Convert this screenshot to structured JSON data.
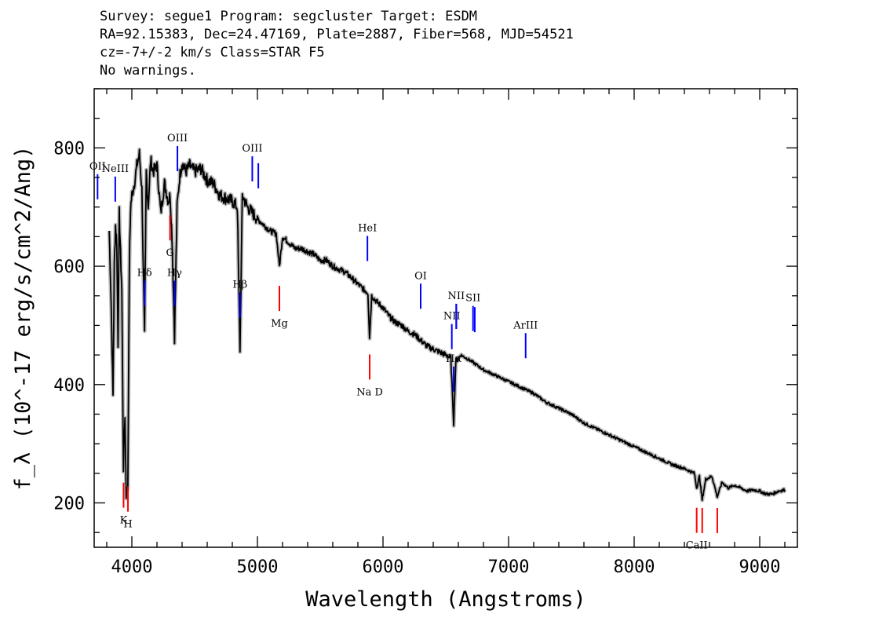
{
  "header": {
    "line1": "Survey: segue1 Program: segcluster Target: ESDM",
    "line2": "RA=92.15383, Dec=24.47169, Plate=2887, Fiber=568, MJD=54521",
    "line3": "cz=-7+/-2 km/s Class=STAR F5",
    "line4": "No warnings."
  },
  "chart_data": {
    "type": "line",
    "xlabel": "Wavelength (Angstroms)",
    "ylabel": "f_λ (10^-17 erg/s/cm^2/Ang)",
    "xlim": [
      3700,
      9300
    ],
    "ylim": [
      125,
      900
    ],
    "xticks": [
      4000,
      5000,
      6000,
      7000,
      8000,
      9000
    ],
    "yticks": [
      200,
      400,
      600,
      800
    ],
    "grid": false,
    "colors": {
      "spectrum": "#000000",
      "emission": "#0000ff",
      "absorption": "#ff0000",
      "error_band": "#bbbbbb"
    },
    "series": [
      {
        "x": [
          3820,
          3835,
          3850,
          3860,
          3870,
          3880,
          3890,
          3900,
          3910,
          3920,
          3933,
          3945,
          3955,
          3968,
          3980,
          3990,
          4000,
          4020,
          4040,
          4060,
          4080,
          4101,
          4115,
          4130,
          4150,
          4170,
          4200,
          4230,
          4260,
          4290,
          4305,
          4320,
          4340,
          4360,
          4380,
          4400,
          4430,
          4460,
          4500,
          4550,
          4600,
          4650,
          4700,
          4750,
          4800,
          4840,
          4861,
          4880,
          4920,
          4960,
          5000,
          5050,
          5100,
          5150,
          5175,
          5200,
          5250,
          5300,
          5350,
          5400,
          5450,
          5500,
          5550,
          5600,
          5650,
          5700,
          5750,
          5800,
          5850,
          5880,
          5893,
          5910,
          5950,
          6000,
          6050,
          6100,
          6150,
          6200,
          6250,
          6300,
          6350,
          6400,
          6450,
          6500,
          6540,
          6563,
          6580,
          6620,
          6700,
          6800,
          6900,
          7000,
          7100,
          7200,
          7300,
          7400,
          7500,
          7600,
          7700,
          7800,
          7900,
          8000,
          8100,
          8200,
          8300,
          8400,
          8480,
          8498,
          8520,
          8542,
          8570,
          8620,
          8662,
          8700,
          8750,
          8800,
          8850,
          8900,
          8950,
          9000,
          9050,
          9100,
          9150,
          9200
        ],
        "y": [
          660,
          540,
          380,
          600,
          670,
          640,
          470,
          690,
          620,
          560,
          260,
          350,
          215,
          230,
          600,
          700,
          720,
          740,
          770,
          790,
          730,
          480,
          760,
          700,
          780,
          760,
          770,
          690,
          740,
          710,
          720,
          650,
          480,
          700,
          750,
          775,
          760,
          770,
          760,
          765,
          745,
          740,
          720,
          715,
          710,
          700,
          460,
          720,
          700,
          690,
          680,
          670,
          660,
          655,
          600,
          650,
          640,
          630,
          630,
          625,
          620,
          610,
          610,
          600,
          595,
          590,
          580,
          570,
          560,
          555,
          480,
          550,
          540,
          530,
          515,
          505,
          500,
          490,
          485,
          475,
          465,
          460,
          455,
          450,
          445,
          335,
          440,
          450,
          440,
          425,
          415,
          405,
          395,
          385,
          370,
          360,
          350,
          335,
          325,
          315,
          305,
          295,
          285,
          275,
          265,
          258,
          250,
          225,
          245,
          205,
          240,
          245,
          210,
          235,
          225,
          230,
          225,
          220,
          222,
          220,
          215,
          215,
          220,
          222
        ]
      }
    ],
    "annotations": {
      "emission_lines": [
        {
          "label": "OII",
          "x": 3727
        },
        {
          "label": "NeIII",
          "x": 3868
        },
        {
          "label": "Hδ",
          "x": 4101
        },
        {
          "label": "Hγ",
          "x": 4340
        },
        {
          "label": "OIII",
          "x": 4363
        },
        {
          "label": "Hβ",
          "x": 4861
        },
        {
          "label": "OIII",
          "x": 4959
        },
        {
          "label": "",
          "x": 5007
        },
        {
          "label": "HeI",
          "x": 5876
        },
        {
          "label": "OI",
          "x": 6300
        },
        {
          "label": "NII",
          "x": 6548
        },
        {
          "label": "Hα",
          "x": 6563
        },
        {
          "label": "",
          "x": 6584
        },
        {
          "label": "NII",
          "x": 6583
        },
        {
          "label": "SII",
          "x": 6717
        },
        {
          "label": "",
          "x": 6731
        },
        {
          "label": "ArIII",
          "x": 7136
        }
      ],
      "absorption_lines": [
        {
          "label": "K",
          "x": 3934
        },
        {
          "label": "H",
          "x": 3969
        },
        {
          "label": "G",
          "x": 4304
        },
        {
          "label": "Mg",
          "x": 5175
        },
        {
          "label": "Na D",
          "x": 5894
        },
        {
          "label": "CaII",
          "x": 8498
        },
        {
          "label": "",
          "x": 8542
        },
        {
          "label": "",
          "x": 8662
        }
      ]
    }
  }
}
